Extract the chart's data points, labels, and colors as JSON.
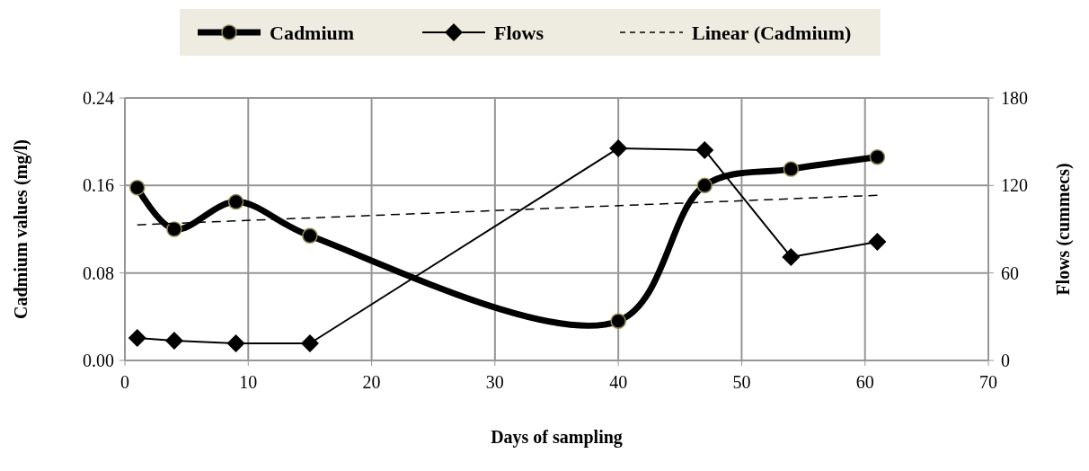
{
  "chart_data": {
    "type": "line",
    "xlabel": "Days of sampling",
    "ylabel": "Cadmium values (mg/l)",
    "y2label": "Flows (cummecs)",
    "x": [
      1,
      4,
      9,
      15,
      40,
      47,
      54,
      61
    ],
    "series": [
      {
        "name": "Cadmium",
        "color": "#000000",
        "marker": "circle",
        "values": [
          0.158,
          0.12,
          0.145,
          0.114,
          0.036,
          0.16,
          0.175,
          0.186
        ]
      },
      {
        "name": "Flows",
        "color": "#000000",
        "marker": "diamond",
        "axis": "y2",
        "values": [
          15.4,
          13.6,
          11.7,
          11.7,
          145.5,
          144.3,
          70.9,
          81.4
        ]
      },
      {
        "name": "Linear (Cadmium)",
        "color": "#000000",
        "marker": "none",
        "line_style": "dashed",
        "x": [
          1,
          61
        ],
        "values": [
          0.124,
          0.151
        ]
      }
    ],
    "xlim": [
      0,
      70
    ],
    "xticks": [
      0,
      10,
      20,
      30,
      40,
      50,
      60,
      70
    ],
    "ylim": [
      0,
      0.24
    ],
    "yticks": [
      {
        "value": 0,
        "label": "0.00"
      },
      {
        "value": 0.08,
        "label": "0.08"
      },
      {
        "value": 0.16,
        "label": "0.16"
      },
      {
        "value": 0.24,
        "label": "0.24"
      }
    ],
    "y2lim": [
      0,
      180
    ],
    "y2ticks": [
      0,
      60,
      120,
      180
    ],
    "grid": true,
    "legend": "top"
  }
}
